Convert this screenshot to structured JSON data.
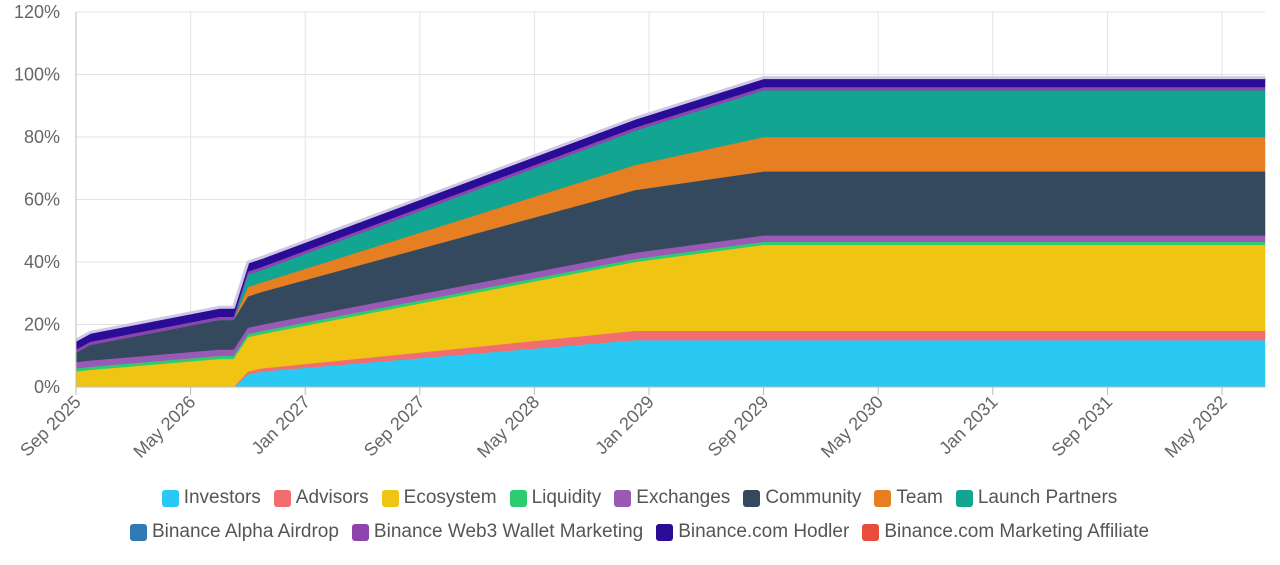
{
  "chart_data": {
    "type": "area",
    "stacked": true,
    "ylim": [
      0,
      120
    ],
    "y_ticks": [
      "0%",
      "20%",
      "40%",
      "60%",
      "80%",
      "100%",
      "120%"
    ],
    "x_ticks": [
      "Sep 2025",
      "May 2026",
      "Jan 2027",
      "Sep 2027",
      "May 2028",
      "Jan 2029",
      "Sep 2029",
      "May 2030",
      "Jan 2031",
      "Sep 2031",
      "May 2032"
    ],
    "x": [
      "2025-09",
      "2025-10",
      "2026-07",
      "2026-08",
      "2026-09",
      "2026-10",
      "2028-12",
      "2029-09",
      "2032-08"
    ],
    "grid": true,
    "legend_position": "bottom",
    "series": [
      {
        "name": "Investors",
        "color": "#29c9f3",
        "values": [
          0,
          0,
          0,
          0,
          4,
          5,
          15,
          15,
          15
        ]
      },
      {
        "name": "Advisors",
        "color": "#f16d6f",
        "values": [
          0,
          0,
          0,
          0,
          1,
          1,
          3,
          3,
          3
        ]
      },
      {
        "name": "Ecosystem",
        "color": "#f0c413",
        "values": [
          5,
          5.5,
          9,
          9,
          11,
          11,
          22,
          27.5,
          27.5
        ]
      },
      {
        "name": "Liquidity",
        "color": "#2ecc71",
        "values": [
          1,
          1,
          1,
          1,
          1,
          1,
          1,
          1,
          1
        ]
      },
      {
        "name": "Exchanges",
        "color": "#9b59b6",
        "values": [
          2,
          2,
          2,
          2,
          2,
          2,
          2,
          2,
          2
        ]
      },
      {
        "name": "Community",
        "color": "#34495e",
        "values": [
          3,
          5,
          9.5,
          9.5,
          10,
          10.5,
          20,
          20.5,
          20.5
        ]
      },
      {
        "name": "Team",
        "color": "#e67e22",
        "values": [
          0,
          0,
          0,
          0,
          3,
          3,
          8,
          11,
          11
        ]
      },
      {
        "name": "Launch Partners",
        "color": "#11a592",
        "values": [
          0,
          0,
          0,
          0,
          4,
          4,
          11,
          15,
          15
        ]
      },
      {
        "name": "Binance Alpha Airdrop",
        "color": "#2f7bb5",
        "values": [
          0,
          0,
          0,
          0,
          0,
          0,
          0,
          0,
          0
        ]
      },
      {
        "name": "Binance Web3 Wallet Marketing",
        "color": "#8e44ad",
        "values": [
          1,
          1,
          1,
          1,
          1,
          1,
          1,
          1,
          1
        ]
      },
      {
        "name": "Binance.com Hodler",
        "color": "#2a0c96",
        "values": [
          3,
          3,
          3,
          3,
          3,
          3,
          3,
          3,
          3
        ]
      },
      {
        "name": "Binance.com Marketing Affiliate",
        "color": "#e74c3c",
        "values": [
          0,
          0,
          0,
          0,
          0,
          0,
          0,
          0,
          0
        ]
      }
    ],
    "legend_rows": [
      [
        "Investors",
        "Advisors",
        "Ecosystem",
        "Liquidity",
        "Exchanges",
        "Community",
        "Team",
        "Launch Partners"
      ],
      [
        "Binance Alpha Airdrop",
        "Binance Web3 Wallet Marketing",
        "Binance.com Hodler",
        "Binance.com Marketing Affiliate"
      ]
    ]
  }
}
